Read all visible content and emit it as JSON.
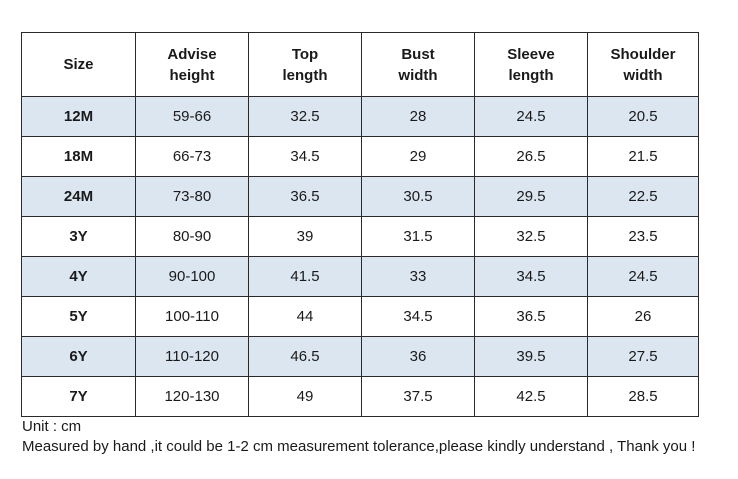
{
  "table": {
    "headers": [
      {
        "lines": [
          "Size"
        ]
      },
      {
        "lines": [
          "Advise",
          "height"
        ]
      },
      {
        "lines": [
          "Top",
          "length"
        ]
      },
      {
        "lines": [
          "Bust",
          "width"
        ]
      },
      {
        "lines": [
          "Sleeve",
          "length"
        ]
      },
      {
        "lines": [
          "Shoulder",
          "width"
        ]
      }
    ],
    "rows": [
      {
        "size": "12M",
        "height": "59-66",
        "top_length": "32.5",
        "bust_width": "28",
        "sleeve_length": "24.5",
        "shoulder_width": "20.5"
      },
      {
        "size": "18M",
        "height": "66-73",
        "top_length": "34.5",
        "bust_width": "29",
        "sleeve_length": "26.5",
        "shoulder_width": "21.5"
      },
      {
        "size": "24M",
        "height": "73-80",
        "top_length": "36.5",
        "bust_width": "30.5",
        "sleeve_length": "29.5",
        "shoulder_width": "22.5"
      },
      {
        "size": "3Y",
        "height": "80-90",
        "top_length": "39",
        "bust_width": "31.5",
        "sleeve_length": "32.5",
        "shoulder_width": "23.5"
      },
      {
        "size": "4Y",
        "height": "90-100",
        "top_length": "41.5",
        "bust_width": "33",
        "sleeve_length": "34.5",
        "shoulder_width": "24.5"
      },
      {
        "size": "5Y",
        "height": "100-110",
        "top_length": "44",
        "bust_width": "34.5",
        "sleeve_length": "36.5",
        "shoulder_width": "26"
      },
      {
        "size": "6Y",
        "height": "110-120",
        "top_length": "46.5",
        "bust_width": "36",
        "sleeve_length": "39.5",
        "shoulder_width": "27.5"
      },
      {
        "size": "7Y",
        "height": "120-130",
        "top_length": "49",
        "bust_width": "37.5",
        "sleeve_length": "42.5",
        "shoulder_width": "28.5"
      }
    ]
  },
  "notes": {
    "unit": "Unit : cm",
    "disclaimer": "Measured by hand ,it could be 1-2 cm measurement tolerance,please kindly understand , Thank you !"
  },
  "colors": {
    "shaded_row": "#dce6f1",
    "border": "#2a2a2a"
  }
}
